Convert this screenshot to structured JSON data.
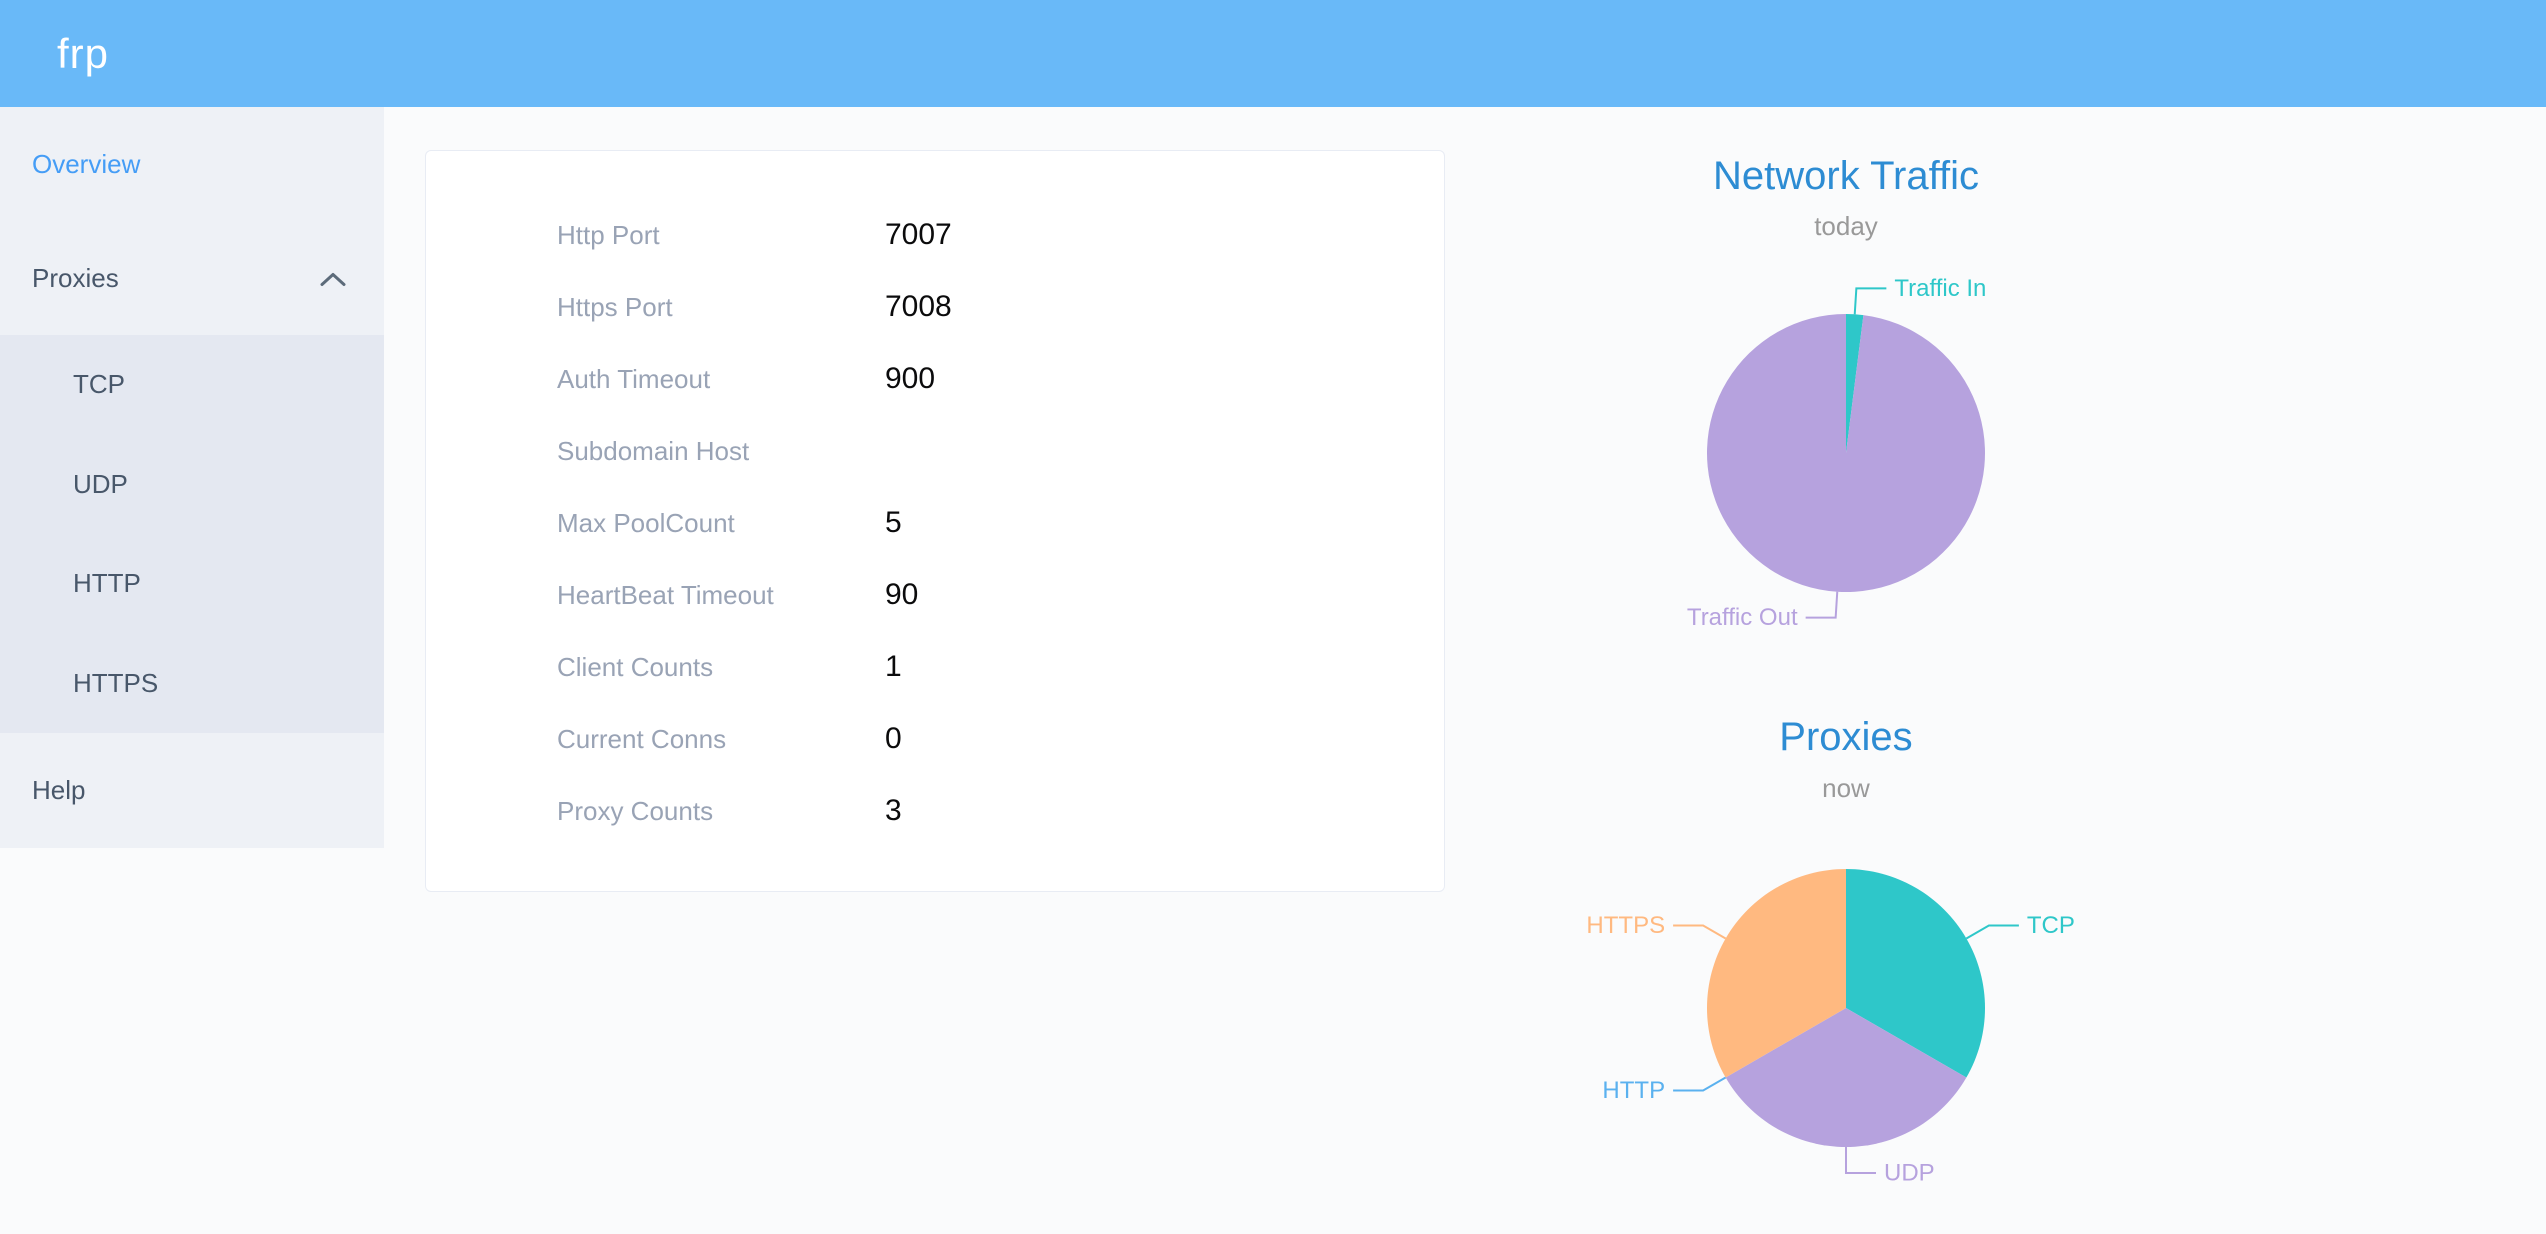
{
  "header": {
    "logo": "frp"
  },
  "sidebar": {
    "items": [
      {
        "label": "Overview",
        "active": true
      },
      {
        "label": "Proxies",
        "expanded": true,
        "children": [
          {
            "label": "TCP"
          },
          {
            "label": "UDP"
          },
          {
            "label": "HTTP"
          },
          {
            "label": "HTTPS"
          }
        ]
      },
      {
        "label": "Help"
      }
    ]
  },
  "overview_card": {
    "rows": [
      {
        "label": "Http Port",
        "value": "7007"
      },
      {
        "label": "Https Port",
        "value": "7008"
      },
      {
        "label": "Auth Timeout",
        "value": "900"
      },
      {
        "label": "Subdomain Host",
        "value": ""
      },
      {
        "label": "Max PoolCount",
        "value": "5"
      },
      {
        "label": "HeartBeat Timeout",
        "value": "90"
      },
      {
        "label": "Client Counts",
        "value": "1"
      },
      {
        "label": "Current Conns",
        "value": "0"
      },
      {
        "label": "Proxy Counts",
        "value": "3"
      }
    ]
  },
  "colors": {
    "header_bg": "#69b9f8",
    "sidebar_bg": "#eef1f6",
    "submenu_bg": "#e4e8f1",
    "active_link": "#459df6",
    "chart_title": "#2d8cd3",
    "teal": "#2ec7c9",
    "purple": "#b6a2de",
    "blue": "#5ab1ef",
    "orange": "#ffb980"
  },
  "chart_data": [
    {
      "type": "pie",
      "title": "Network Traffic",
      "subtitle": "today",
      "labels_layout": "outside-callout",
      "slices": [
        {
          "label": "Traffic In",
          "value": 2,
          "color": "#2ec7c9"
        },
        {
          "label": "Traffic Out",
          "value": 98,
          "color": "#b6a2de"
        }
      ]
    },
    {
      "type": "pie",
      "title": "Proxies",
      "subtitle": "now",
      "labels_layout": "outside-callout",
      "slices": [
        {
          "label": "TCP",
          "value": 1,
          "color": "#2ec7c9"
        },
        {
          "label": "UDP",
          "value": 1,
          "color": "#b6a2de"
        },
        {
          "label": "HTTP",
          "value": 0,
          "color": "#5ab1ef"
        },
        {
          "label": "HTTPS",
          "value": 1,
          "color": "#ffb980"
        }
      ]
    }
  ]
}
